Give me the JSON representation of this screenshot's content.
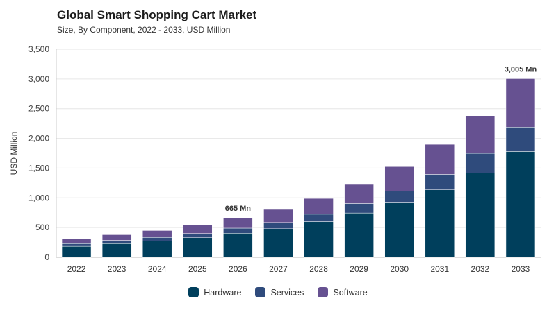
{
  "chart_data": {
    "type": "bar",
    "stacked": true,
    "title": "Global Smart Shopping Cart Market",
    "subtitle": "Size, By Component, 2022 - 2033, USD Million",
    "xlabel": "",
    "ylabel": "USD Million",
    "ylim": [
      0,
      3500
    ],
    "yticks": [
      0,
      500,
      1000,
      1500,
      2000,
      2500,
      3000,
      3500
    ],
    "ytick_labels": [
      "0",
      "500",
      "1,000",
      "1,500",
      "2,000",
      "2,500",
      "3,000",
      "3,500"
    ],
    "grid": true,
    "legend_position": "bottom",
    "categories": [
      "2022",
      "2023",
      "2024",
      "2025",
      "2026",
      "2027",
      "2028",
      "2029",
      "2030",
      "2031",
      "2032",
      "2033"
    ],
    "series": [
      {
        "name": "Hardware",
        "color": "#003f5c",
        "values": [
          185,
          230,
          275,
          330,
          405,
          480,
          600,
          745,
          915,
          1135,
          1420,
          1780
        ]
      },
      {
        "name": "Services",
        "color": "#2f4b7c",
        "values": [
          45,
          55,
          60,
          70,
          85,
          105,
          125,
          160,
          200,
          260,
          330,
          410
        ]
      },
      {
        "name": "Software",
        "color": "#665191",
        "values": [
          85,
          95,
          115,
          140,
          175,
          220,
          265,
          320,
          410,
          505,
          630,
          815
        ]
      }
    ],
    "annotations": [
      {
        "category": "2026",
        "text": "665 Mn"
      },
      {
        "category": "2033",
        "text": "3,005 Mn"
      }
    ]
  }
}
